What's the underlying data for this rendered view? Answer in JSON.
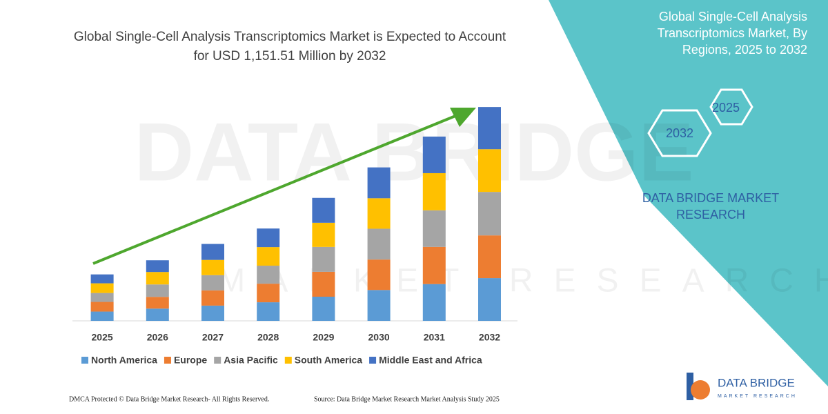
{
  "chart_data": {
    "type": "stacked_bar",
    "title": "Global Single-Cell Analysis Transcriptomics Market is Expected to Account for USD 1,151.51 Million by 2032",
    "categories": [
      "2025",
      "2026",
      "2027",
      "2028",
      "2029",
      "2030",
      "2031",
      "2032"
    ],
    "series": [
      {
        "name": "North America",
        "color": "#5b9bd5",
        "values": [
          50,
          66,
          82,
          100,
          130,
          166,
          198,
          230
        ]
      },
      {
        "name": "Europe",
        "color": "#ed7d31",
        "values": [
          52,
          63,
          82,
          100,
          134,
          164,
          200,
          230
        ]
      },
      {
        "name": "Asia Pacific",
        "color": "#a5a5a5",
        "values": [
          48,
          67,
          82,
          97,
          134,
          166,
          197,
          234
        ]
      },
      {
        "name": "South America",
        "color": "#ffc000",
        "values": [
          52,
          67,
          82,
          100,
          130,
          164,
          200,
          230
        ]
      },
      {
        "name": "Middle East and Africa",
        "color": "#4472c4",
        "values": [
          48,
          63,
          86,
          100,
          134,
          166,
          197,
          227
        ]
      }
    ],
    "ylim": [
      0,
      1170
    ],
    "trend_color": "#4ea72e"
  },
  "side_panel": {
    "title": "Global Single-Cell Analysis Transcriptomics Market, By Regions, 2025 to 2032",
    "hexagons": [
      "2025",
      "2032"
    ],
    "brand": "DATA BRIDGE MARKET RESEARCH"
  },
  "watermark": {
    "main": "DATA BRIDGE",
    "sub": "MARKET RESEARCH"
  },
  "logo": {
    "name": "DATA BRIDGE",
    "tagline": "MARKET RESEARCH"
  },
  "footer": {
    "left": "DMCA Protected © Data Bridge Market Research-  All Rights Reserved.",
    "right": "Source: Data Bridge Market Research  Market Analysis Study 2025"
  }
}
